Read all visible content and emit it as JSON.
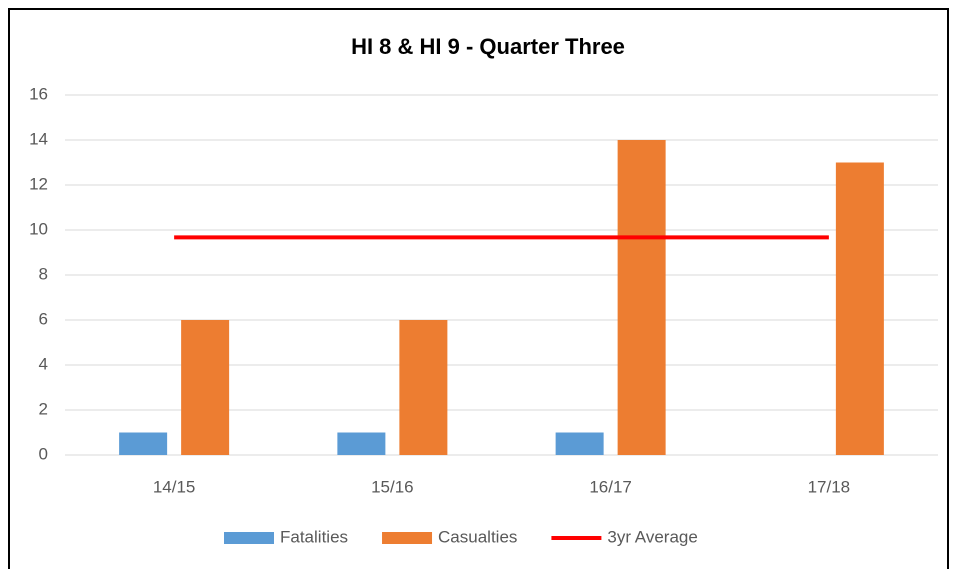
{
  "chart_data": {
    "type": "bar",
    "title": "HI 8 & HI 9 - Quarter Three",
    "categories": [
      "14/15",
      "15/16",
      "16/17",
      "17/18"
    ],
    "series": [
      {
        "name": "Fatalities",
        "color": "#5b9bd5",
        "values": [
          1,
          1,
          1,
          0
        ]
      },
      {
        "name": "Casualties",
        "color": "#ed7d31",
        "values": [
          6,
          6,
          14,
          13
        ]
      },
      {
        "name": "3yr Average",
        "color": "#ff0000",
        "type": "line",
        "values": [
          9.67,
          9.67,
          9.67,
          9.67
        ]
      }
    ],
    "ylim": [
      0,
      16
    ],
    "yticks": [
      0,
      2,
      4,
      6,
      8,
      10,
      12,
      14,
      16
    ],
    "grid": true,
    "legend": "bottom"
  }
}
